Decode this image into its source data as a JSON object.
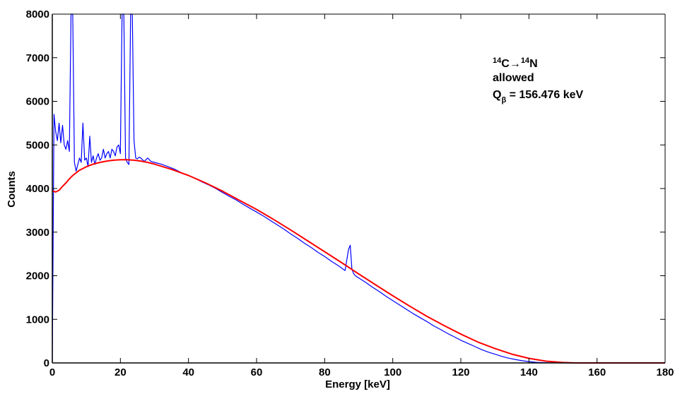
{
  "chart_data": {
    "type": "line",
    "xlabel": "Energy [keV]",
    "ylabel": "Counts",
    "xlim": [
      0,
      180
    ],
    "ylim": [
      0,
      8000
    ],
    "xticks": [
      0,
      20,
      40,
      60,
      80,
      100,
      120,
      140,
      160,
      180
    ],
    "yticks": [
      0,
      1000,
      2000,
      3000,
      4000,
      5000,
      6000,
      7000,
      8000
    ],
    "grid": false,
    "legend": "none",
    "annotation": {
      "line1_base": "C",
      "line1_sup1": "14",
      "line1_arrow": "→",
      "line1_sup2": "14",
      "line1_target": "N",
      "line2": "allowed",
      "line3_base": "Q",
      "line3_sub": "β",
      "line3_rest": " = 156.476 keV"
    },
    "series": [
      {
        "kind": "measured",
        "color": "#0000ff",
        "x": [
          0,
          0.5,
          1,
          1.5,
          2,
          2.5,
          3,
          3.5,
          4,
          4.5,
          5,
          5.5,
          6,
          6.5,
          7,
          7.5,
          8,
          8.5,
          9,
          9.5,
          10,
          10.5,
          11,
          11.5,
          12,
          12.5,
          13,
          13.5,
          14,
          14.5,
          15,
          15.5,
          16,
          16.5,
          17,
          17.5,
          18,
          18.5,
          19,
          19.5,
          20,
          20.5,
          21,
          21.5,
          22,
          22.5,
          23,
          23.5,
          24,
          24.5,
          25,
          25.5,
          26,
          27,
          28,
          29,
          30,
          32,
          34,
          36,
          38,
          40,
          42,
          44,
          46,
          48,
          50,
          52,
          54,
          56,
          58,
          60,
          62,
          64,
          66,
          68,
          70,
          72,
          74,
          76,
          78,
          80,
          82,
          84,
          86,
          87,
          87.5,
          88,
          88.5,
          89,
          90,
          92,
          94,
          96,
          98,
          100,
          102,
          104,
          106,
          108,
          110,
          112,
          114,
          116,
          118,
          120,
          122,
          124,
          126,
          128,
          130,
          132,
          134,
          136,
          138,
          140,
          142,
          144,
          146,
          148,
          150,
          152,
          154,
          156,
          158,
          160,
          165,
          170,
          175,
          180
        ],
        "values": [
          0,
          5700,
          5300,
          5100,
          5500,
          5050,
          5450,
          5000,
          4900,
          5100,
          4850,
          8000,
          8000,
          4600,
          4400,
          4550,
          4700,
          4600,
          5500,
          4650,
          4700,
          4500,
          5200,
          4600,
          4750,
          4550,
          4700,
          4800,
          4650,
          4700,
          4900,
          4700,
          4800,
          4850,
          4700,
          4900,
          4850,
          4750,
          4950,
          5000,
          4800,
          8000,
          8000,
          4700,
          4600,
          4550,
          8000,
          8000,
          5100,
          4700,
          4680,
          4720,
          4700,
          4620,
          4700,
          4620,
          4600,
          4560,
          4500,
          4440,
          4360,
          4300,
          4230,
          4150,
          4080,
          4000,
          3910,
          3820,
          3740,
          3640,
          3550,
          3460,
          3370,
          3270,
          3170,
          3070,
          2960,
          2860,
          2750,
          2650,
          2540,
          2440,
          2330,
          2230,
          2120,
          2600,
          2700,
          2150,
          2050,
          2000,
          1950,
          1850,
          1740,
          1640,
          1530,
          1430,
          1330,
          1230,
          1130,
          1040,
          950,
          850,
          770,
          680,
          600,
          520,
          450,
          380,
          310,
          250,
          200,
          150,
          110,
          80,
          50,
          30,
          15,
          8,
          3,
          1,
          0,
          0,
          0,
          0,
          0,
          0,
          0,
          0,
          0,
          0
        ]
      },
      {
        "kind": "fit",
        "color": "#ff0000",
        "x": [
          0,
          1,
          2,
          3,
          4,
          5,
          6,
          8,
          10,
          12,
          14,
          16,
          18,
          20,
          22,
          24,
          26,
          28,
          30,
          35,
          40,
          45,
          50,
          55,
          60,
          65,
          70,
          75,
          80,
          85,
          90,
          95,
          100,
          105,
          110,
          115,
          120,
          125,
          130,
          135,
          140,
          145,
          150,
          153,
          156.476,
          160,
          170,
          180
        ],
        "values": [
          3950,
          3920,
          3960,
          4050,
          4130,
          4220,
          4300,
          4420,
          4500,
          4560,
          4600,
          4630,
          4650,
          4660,
          4660,
          4650,
          4630,
          4600,
          4560,
          4440,
          4300,
          4130,
          3940,
          3730,
          3520,
          3290,
          3050,
          2800,
          2550,
          2300,
          2040,
          1790,
          1540,
          1300,
          1070,
          860,
          660,
          480,
          330,
          200,
          105,
          40,
          10,
          2,
          0,
          0,
          0,
          0
        ]
      }
    ]
  }
}
